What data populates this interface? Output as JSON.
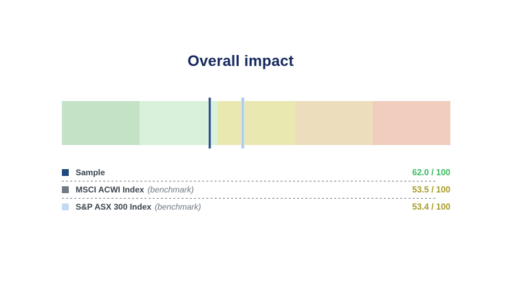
{
  "page": {
    "background": "#ffffff"
  },
  "chart_data": {
    "type": "bar",
    "subtype": "linear-gauge-bullet",
    "title": "Overall impact",
    "title_color": "#15275d",
    "axis": {
      "min": 0,
      "max": 100,
      "orientation": "horizontal",
      "high_values_on_left": true,
      "tick_labels": "none",
      "gridlines": false
    },
    "bands": [
      {
        "range": "100-80",
        "color": "#c3e2c6"
      },
      {
        "range": "80-60",
        "color": "#d9f1da"
      },
      {
        "range": "60-40",
        "color": "#e9e8b1"
      },
      {
        "range": "40-20",
        "color": "#ecdebc"
      },
      {
        "range": "20-0",
        "color": "#f0cdbd"
      }
    ],
    "series": [
      {
        "name": "Sample",
        "qualifier": "",
        "value": 62.0,
        "max": 100,
        "display": "62.0 / 100",
        "marker_color": "#1d4a7c",
        "marker_border": "#f4f7fa",
        "swatch_color": "#1e4b7f",
        "value_color": "#3cba62",
        "is_benchmark": false
      },
      {
        "name": "MSCI ACWI Index",
        "qualifier": "(benchmark)",
        "value": 53.5,
        "max": 100,
        "display": "53.5 / 100",
        "marker_color": "#6f7b86",
        "marker_border": "#c8cdd2",
        "swatch_color": "#6f7b86",
        "value_color": "#a89b27",
        "is_benchmark": true
      },
      {
        "name": "S&P ASX 300 Index",
        "qualifier": "(benchmark)",
        "value": 53.4,
        "max": 100,
        "display": "53.4 / 100",
        "marker_color": "#a9c7ee",
        "marker_border": "#dde8f8",
        "swatch_color": "#c3d9f3",
        "value_color": "#a89b27",
        "is_benchmark": true
      }
    ],
    "legend": {
      "label_color": "#3a434d",
      "qualifier_color": "#6e7882",
      "separator_color": "#7d8388"
    }
  }
}
